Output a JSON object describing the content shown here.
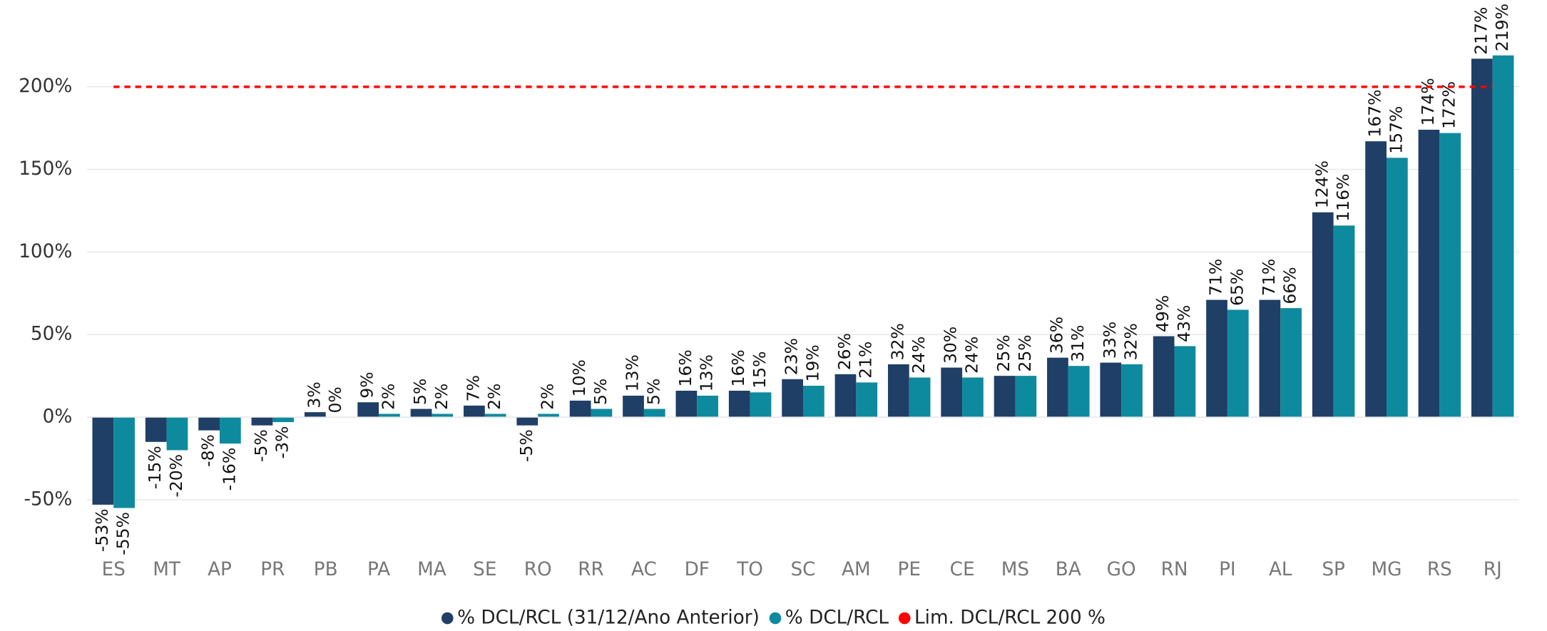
{
  "chart_data": {
    "type": "bar",
    "categories": [
      "ES",
      "MT",
      "AP",
      "PR",
      "PB",
      "PA",
      "MA",
      "SE",
      "RO",
      "RR",
      "AC",
      "DF",
      "TO",
      "SC",
      "AM",
      "PE",
      "CE",
      "MS",
      "BA",
      "GO",
      "RN",
      "PI",
      "AL",
      "SP",
      "MG",
      "RS",
      "RJ"
    ],
    "series": [
      {
        "name": "% DCL/RCL (31/12/Ano Anterior)",
        "color": "#1f3f66",
        "values": [
          -53,
          -15,
          -8,
          -5,
          3,
          9,
          5,
          7,
          -5,
          10,
          13,
          16,
          16,
          23,
          26,
          32,
          30,
          25,
          36,
          33,
          49,
          71,
          71,
          124,
          167,
          174,
          217
        ],
        "value_labels": [
          "-53%",
          "-15%",
          "-8%",
          "-5%",
          "3%",
          "9%",
          "5%",
          "7%",
          "-5%",
          "10%",
          "13%",
          "16%",
          "16%",
          "23%",
          "26%",
          "32%",
          "30%",
          "25%",
          "36%",
          "33%",
          "49%",
          "71%",
          "71%",
          "124%",
          "167%",
          "174%",
          "217%"
        ]
      },
      {
        "name": "% DCL/RCL",
        "color": "#0e8a9e",
        "values": [
          -55,
          -20,
          -16,
          -3,
          0,
          2,
          2,
          2,
          2,
          5,
          5,
          13,
          15,
          19,
          21,
          24,
          24,
          25,
          31,
          32,
          43,
          65,
          66,
          116,
          157,
          172,
          219
        ],
        "value_labels": [
          "-55%",
          "-20%",
          "-16%",
          "-3%",
          "0%",
          "2%",
          "2%",
          "2%",
          "2%",
          "5%",
          "5%",
          "13%",
          "15%",
          "19%",
          "21%",
          "24%",
          "24%",
          "25%",
          "31%",
          "32%",
          "43%",
          "65%",
          "66%",
          "116%",
          "157%",
          "172%",
          "219%"
        ]
      }
    ],
    "limit": {
      "name": "Lim. DCL/RCL 200 %",
      "value": 200,
      "color": "#ff0000"
    },
    "ylim": [
      -65,
      240
    ],
    "yticks": [
      {
        "value": -50,
        "label": "-50%"
      },
      {
        "value": 0,
        "label": "0%"
      },
      {
        "value": 50,
        "label": "50%"
      },
      {
        "value": 100,
        "label": "100%"
      },
      {
        "value": 150,
        "label": "150%"
      },
      {
        "value": 200,
        "label": "200%"
      }
    ],
    "grid": true
  }
}
